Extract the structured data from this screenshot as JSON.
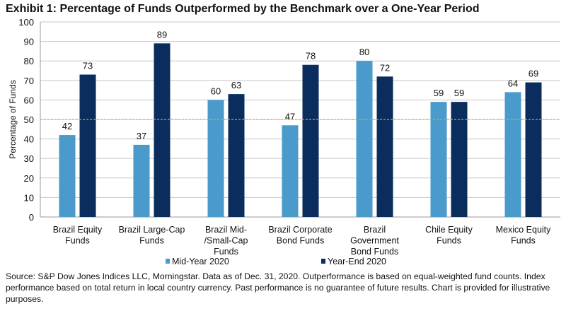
{
  "chart_data": {
    "type": "bar",
    "title": "Exhibit 1: Percentage of Funds Outperformed by the Benchmark over a One-Year Period",
    "xlabel": "",
    "ylabel": "Percentage of Funds",
    "ylim": [
      0,
      100
    ],
    "yticks": [
      0,
      10,
      20,
      30,
      40,
      50,
      60,
      70,
      80,
      90,
      100
    ],
    "grid": true,
    "reference_line": {
      "value": 50,
      "color": "#E0A030",
      "style": "dashed"
    },
    "legend_position": "bottom",
    "categories": [
      [
        "Brazil Equity",
        "Funds"
      ],
      [
        "Brazil Large-Cap",
        "Funds"
      ],
      [
        "Brazil Mid-",
        "/Small-Cap",
        "Funds"
      ],
      [
        "Brazil Corporate",
        "Bond Funds"
      ],
      [
        "Brazil",
        "Government",
        "Bond Funds"
      ],
      [
        "Chile Equity",
        "Funds"
      ],
      [
        "Mexico Equity",
        "Funds"
      ]
    ],
    "series": [
      {
        "name": "Mid-Year 2020",
        "color": "#4A9ACB",
        "values": [
          42,
          37,
          60,
          47,
          80,
          59,
          64
        ]
      },
      {
        "name": "Year-End 2020",
        "color": "#0B2D5E",
        "values": [
          73,
          89,
          63,
          78,
          72,
          59,
          69
        ]
      }
    ]
  },
  "source": "Source: S&P Dow Jones Indices LLC, Morningstar. Data as of Dec. 31, 2020. Outperformance is based on equal-weighted fund counts. Index performance based on total return in local country currency. Past performance is no guarantee of future results. Chart is provided for illustrative purposes."
}
